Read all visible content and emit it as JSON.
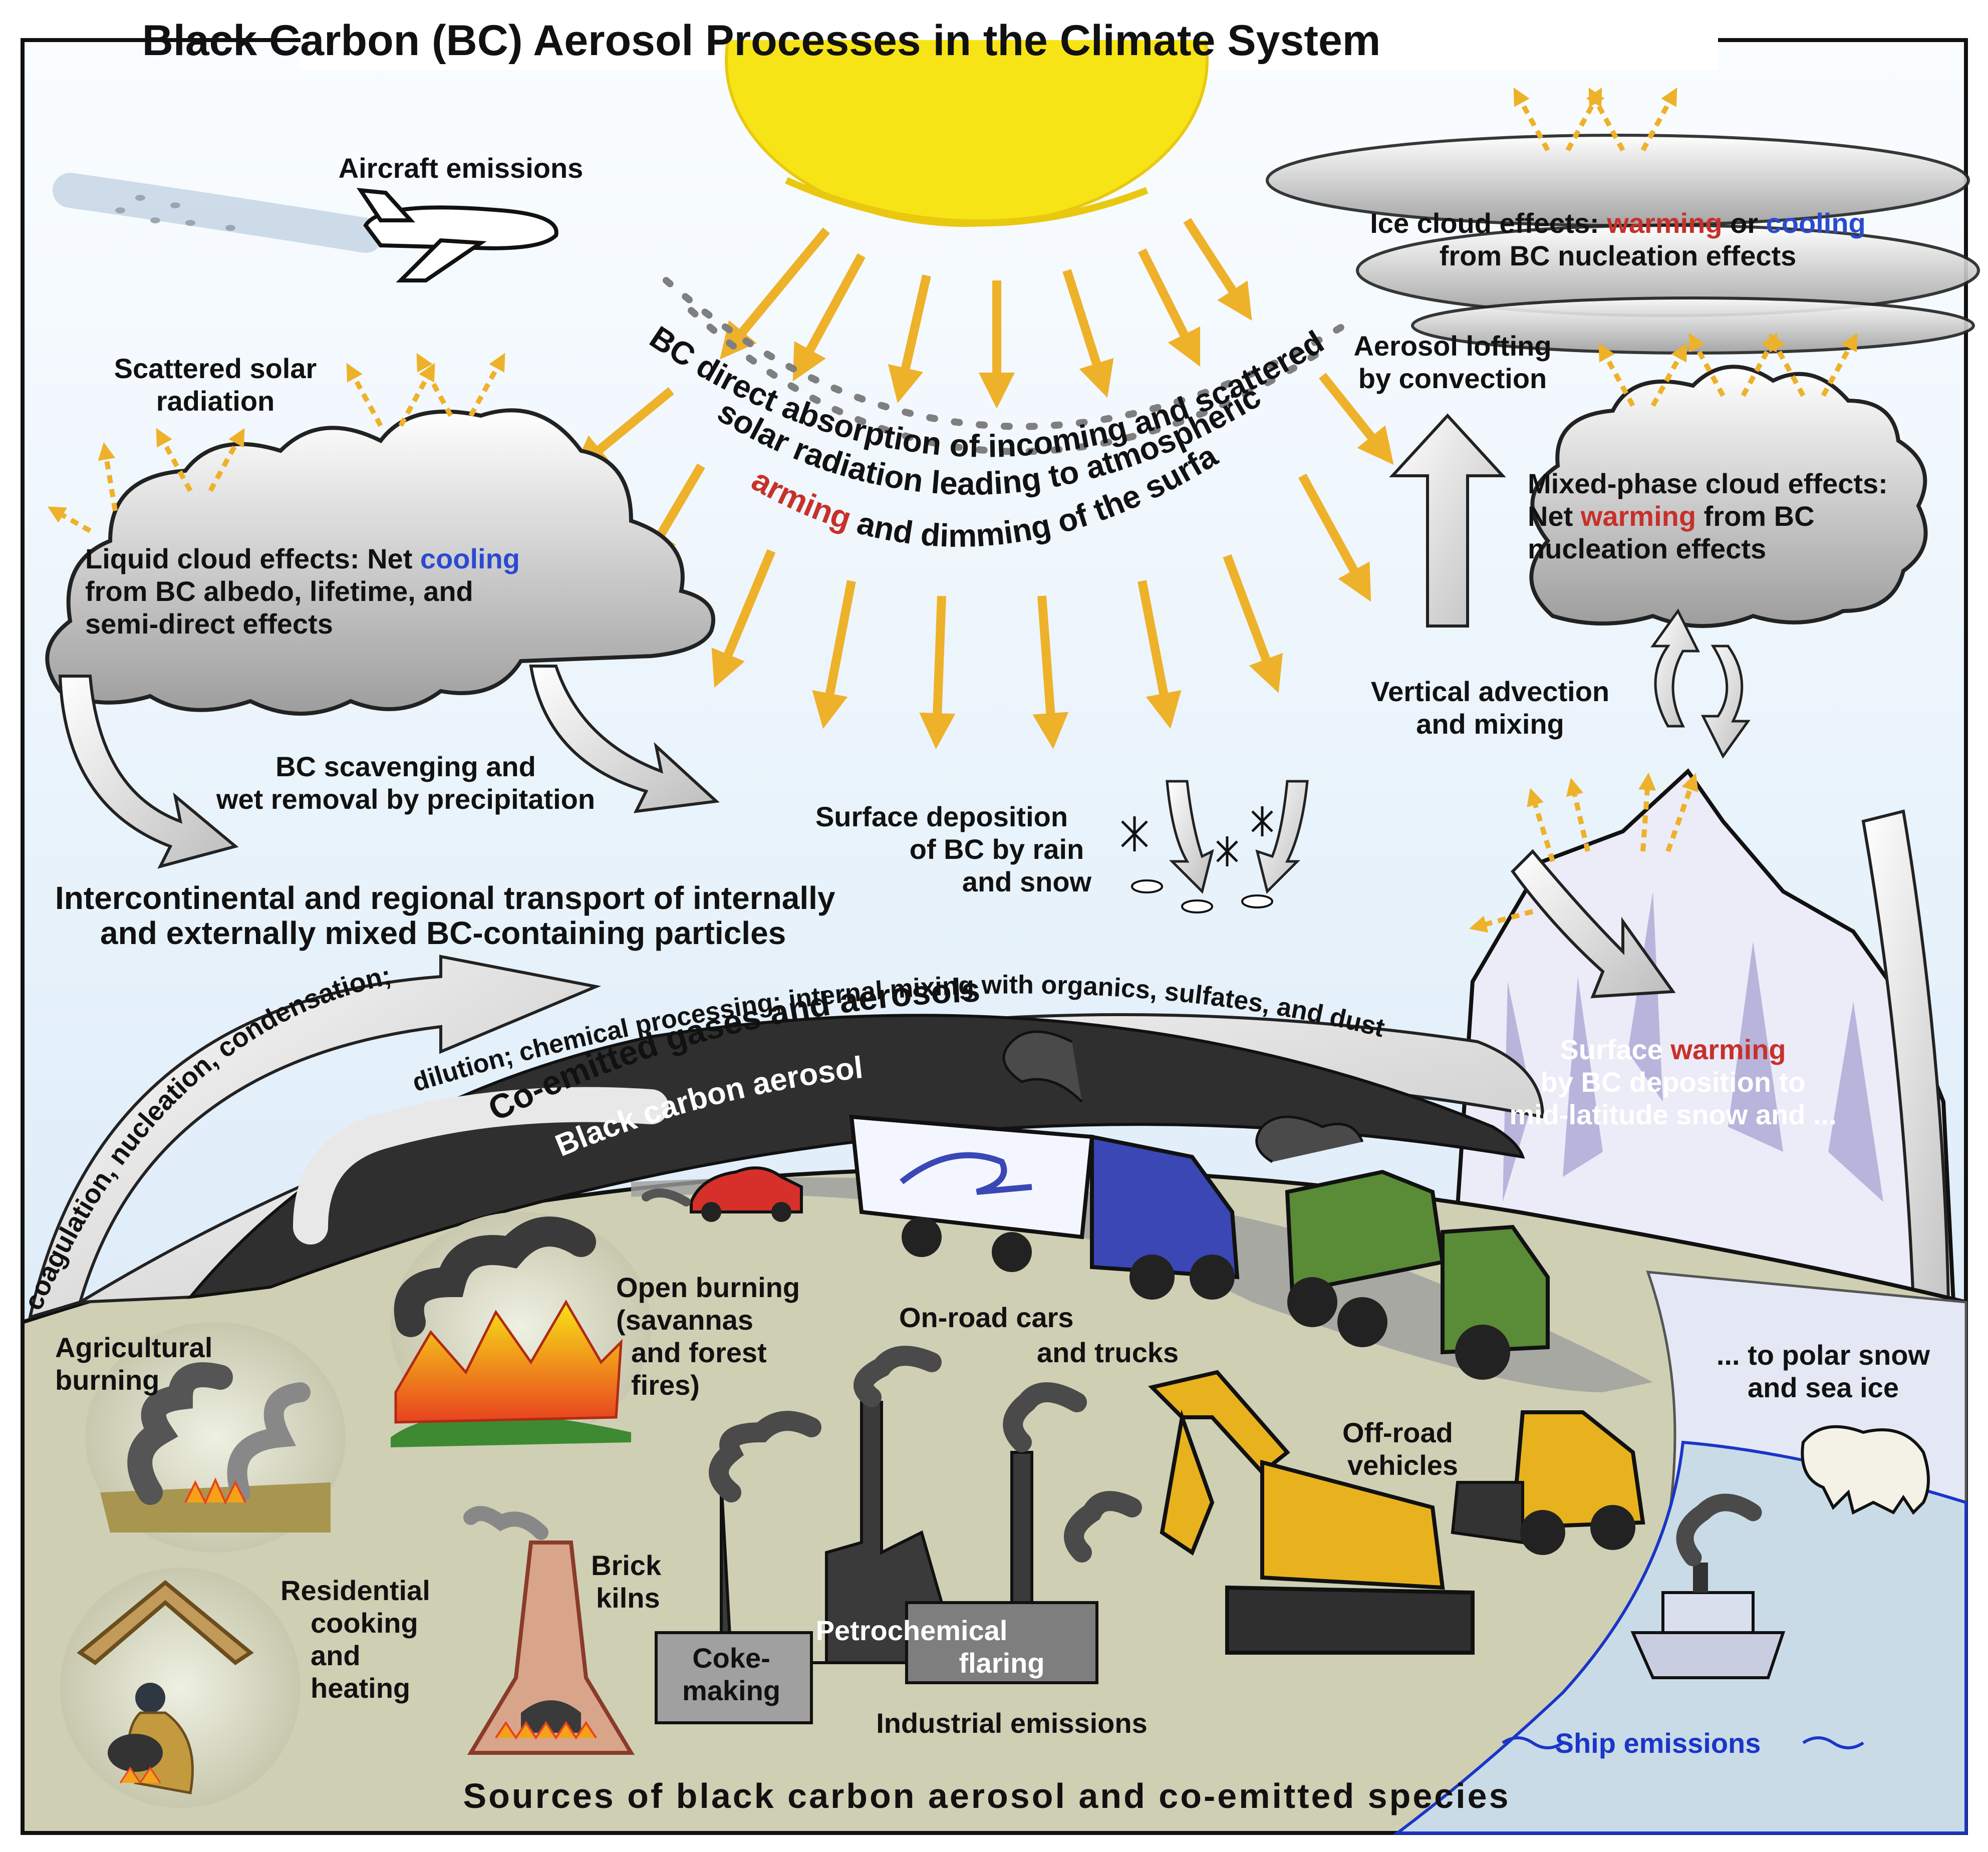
{
  "title": "Black Carbon (BC) Aerosol Processes in the Climate System",
  "footer": "Sources of black carbon aerosol and co-emitted species",
  "colors": {
    "sky_top": "#f7fbff",
    "sky_bottom": "#d6e8f7",
    "sun": "#f7e417",
    "ray": "#eeb12a",
    "ground": "#cfcfb4",
    "bc_band": "#2a2a2a",
    "snow": "#e9e6f5",
    "sea": "#c9dbe6",
    "warming": "#c8302a",
    "cooling": "#2a4bd0",
    "ship_text": "#1a35c8"
  },
  "labels": {
    "aircraft": "Aircraft emissions",
    "scattered_1": "Scattered solar",
    "scattered_2": "radiation",
    "liquid_1a": "Liquid cloud effects:  Net ",
    "liquid_1b": "cooling",
    "liquid_2": "from BC albedo, lifetime, and",
    "liquid_3": "semi-direct effects",
    "direct_1": "BC direct absorption of incoming and scattered",
    "direct_2": "solar radiation leading to atmospheric",
    "direct_3a": "warming",
    "direct_3b": " and dimming of the surface",
    "ice_1a": "Ice cloud effects: ",
    "ice_1b": "warming",
    "ice_1c": " or ",
    "ice_1d": "cooling",
    "ice_2": "from BC nucleation effects",
    "lofting_1": "Aerosol lofting",
    "lofting_2": "by convection",
    "mixed_1": "Mixed-phase cloud effects:",
    "mixed_2a": "Net ",
    "mixed_2b": "warming",
    "mixed_2c": " from BC",
    "mixed_3": "nucleation effects",
    "vertical_1": "Vertical advection",
    "vertical_2": "and mixing",
    "scav_1": "BC scavenging and",
    "scav_2": "wet removal by precipitation",
    "surfdep_1": "Surface deposition",
    "surfdep_2": "of BC by rain",
    "surfdep_3": "and snow",
    "transport_1": "Intercontinental and regional transport of internally",
    "transport_2": "and  externally mixed BC-containing particles",
    "arc_coag": "coagulation, nucleation, condensation;",
    "arc_dilution": "dilution; chemical processing; internal mixing with organics, sulfates, and dust",
    "arc_coemitted": "Co-emitted gases and aerosols",
    "arc_bc": "Black carbon aerosol",
    "surfwarm_1a": "Surface ",
    "surfwarm_1b": "warming",
    "surfwarm_2": "by BC deposition to",
    "surfwarm_3": "mid-latitude snow and ...",
    "polar_1": "... to polar snow",
    "polar_2": "and sea ice",
    "agri_1": "Agricultural",
    "agri_2": "burning",
    "open_1": "Open burning",
    "open_2": "(savannas",
    "open_3": "and forest",
    "open_4": "fires)",
    "onroad_1": "On-road cars",
    "onroad_2": "and trucks",
    "offroad_1": "Off-road",
    "offroad_2": "vehicles",
    "resid_1": "Residential",
    "resid_2": "cooking",
    "resid_3": "and",
    "resid_4": "heating",
    "brick_1": "Brick",
    "brick_2": "kilns",
    "petro_1": "Petrochemical",
    "petro_2": "flaring",
    "coke_1": "Coke-",
    "coke_2": "making",
    "industrial": "Industrial emissions",
    "ship": "Ship emissions"
  }
}
